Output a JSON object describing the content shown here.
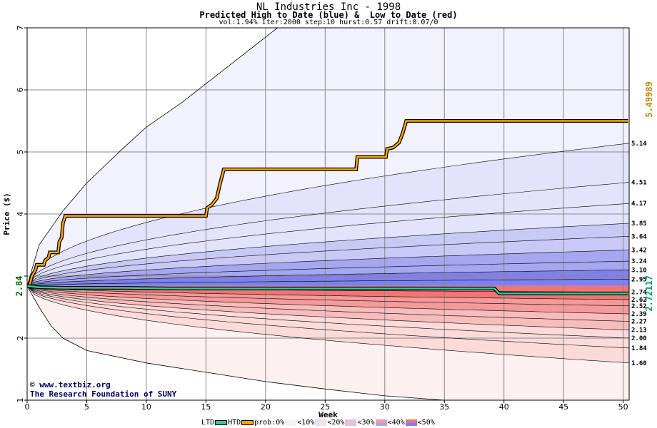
{
  "header": {
    "title": "NL Industries Inc - 1998",
    "subtitle": "Predicted High to Date (blue) &  Low to Date (red)",
    "params": "vol:1.94% iter:2000 step:10 hurst:0.57 drift:0.07/0"
  },
  "footer": {
    "site": "www.textbiz.org",
    "org": "The Research Foundation of SUNY"
  },
  "legend": {
    "ltd": "LTD",
    "htd": "HTD",
    "prob": "prob:0%",
    "items": [
      "<10%",
      "<20%",
      "<30%",
      "<40%",
      "<50%"
    ]
  },
  "colors": {
    "htd": "#ffa500",
    "ltd": "#33cc99",
    "band_blue": [
      "#f2f2fd",
      "#e3e3fb",
      "#c9c9f6",
      "#a6a6f1",
      "#8080ec"
    ],
    "band_red": [
      "#fdf0f0",
      "#fbdada",
      "#f8bcbc",
      "#f59999",
      "#f27474"
    ],
    "left_label": "#006600",
    "right_high": "#b8860b",
    "right_low": "#009966"
  },
  "chart_data": {
    "type": "area",
    "xlabel": "Week",
    "ylabel": "Price ($)",
    "xlim": [
      0,
      50.5
    ],
    "ylim": [
      1,
      7
    ],
    "x_ticks": [
      0,
      5,
      10,
      15,
      20,
      25,
      30,
      35,
      40,
      45,
      50
    ],
    "y_ticks": [
      1,
      2,
      3,
      4,
      5,
      6,
      7
    ],
    "y_tick_labels": [
      "1",
      "2",
      "",
      "4",
      "5",
      "6",
      "7"
    ],
    "grid": true,
    "start_price": 2.84,
    "start_label": "2.84",
    "htd_final_label": "5.49989",
    "ltd_final_label": "2.72117",
    "high_quantiles": [
      {
        "label": "5.14",
        "final": 5.14,
        "k": 1.33
      },
      {
        "label": "4.51",
        "final": 4.51,
        "k": 0.9
      },
      {
        "label": "4.17",
        "final": 4.17,
        "k": 0.72
      },
      {
        "label": "3.85",
        "final": 3.85,
        "k": 0.58
      },
      {
        "label": "3.64",
        "final": 3.64,
        "k": 0.49
      },
      {
        "label": "3.42",
        "final": 3.42,
        "k": 0.41
      },
      {
        "label": "3.24",
        "final": 3.24,
        "k": 0.34
      },
      {
        "label": "3.10",
        "final": 3.1,
        "k": 0.29
      },
      {
        "label": "2.95",
        "final": 2.95,
        "k": 0.24
      }
    ],
    "low_quantiles": [
      {
        "label": "2.74",
        "final": 2.74,
        "k": 0.18
      },
      {
        "label": "2.62",
        "final": 2.62,
        "k": 0.22
      },
      {
        "label": "2.52",
        "final": 2.52,
        "k": 0.26
      },
      {
        "label": "2.39",
        "final": 2.39,
        "k": 0.34
      },
      {
        "label": "2.27",
        "final": 2.27,
        "k": 0.4
      },
      {
        "label": "2.13",
        "final": 2.13,
        "k": 0.48
      },
      {
        "label": "2.00",
        "final": 2.0,
        "k": 0.56
      },
      {
        "label": "1.84",
        "final": 1.84,
        "k": 0.66
      },
      {
        "label": "1.60",
        "final": 1.6,
        "k": 0.82
      }
    ],
    "outer_high_curve": [
      [
        0,
        2.84
      ],
      [
        1,
        3.5
      ],
      [
        3,
        4.05
      ],
      [
        5,
        4.5
      ],
      [
        8,
        5.05
      ],
      [
        10,
        5.4
      ],
      [
        13,
        5.8
      ],
      [
        16,
        6.25
      ],
      [
        18,
        6.55
      ],
      [
        20,
        6.85
      ],
      [
        21,
        7.0
      ]
    ],
    "outer_low_curve": [
      [
        0,
        2.84
      ],
      [
        1,
        2.5
      ],
      [
        2,
        2.2
      ],
      [
        3,
        2.0
      ],
      [
        5,
        1.8
      ],
      [
        10,
        1.6
      ],
      [
        15,
        1.45
      ],
      [
        20,
        1.3
      ],
      [
        25,
        1.18
      ],
      [
        30,
        1.07
      ],
      [
        35,
        1.0
      ]
    ],
    "htd_path": [
      [
        0,
        2.84
      ],
      [
        0.2,
        2.84
      ],
      [
        0.4,
        3.0
      ],
      [
        0.7,
        3.1
      ],
      [
        0.8,
        3.18
      ],
      [
        1.4,
        3.18
      ],
      [
        1.5,
        3.25
      ],
      [
        1.8,
        3.3
      ],
      [
        1.9,
        3.38
      ],
      [
        2.6,
        3.38
      ],
      [
        2.7,
        3.55
      ],
      [
        2.9,
        3.62
      ],
      [
        3.0,
        3.85
      ],
      [
        3.2,
        3.97
      ],
      [
        15.0,
        3.97
      ],
      [
        15.1,
        4.1
      ],
      [
        15.5,
        4.15
      ],
      [
        15.9,
        4.25
      ],
      [
        16.2,
        4.5
      ],
      [
        16.5,
        4.72
      ],
      [
        27.6,
        4.72
      ],
      [
        27.7,
        4.92
      ],
      [
        30.1,
        4.92
      ],
      [
        30.2,
        5.05
      ],
      [
        30.7,
        5.07
      ],
      [
        31.2,
        5.15
      ],
      [
        31.5,
        5.3
      ],
      [
        31.8,
        5.5
      ],
      [
        50.4,
        5.5
      ]
    ],
    "ltd_path": [
      [
        0,
        2.84
      ],
      [
        1,
        2.82
      ],
      [
        3,
        2.81
      ],
      [
        8,
        2.81
      ],
      [
        12,
        2.8
      ],
      [
        20,
        2.8
      ],
      [
        30,
        2.8
      ],
      [
        39.2,
        2.8
      ],
      [
        39.6,
        2.72
      ],
      [
        50.4,
        2.72
      ]
    ]
  }
}
